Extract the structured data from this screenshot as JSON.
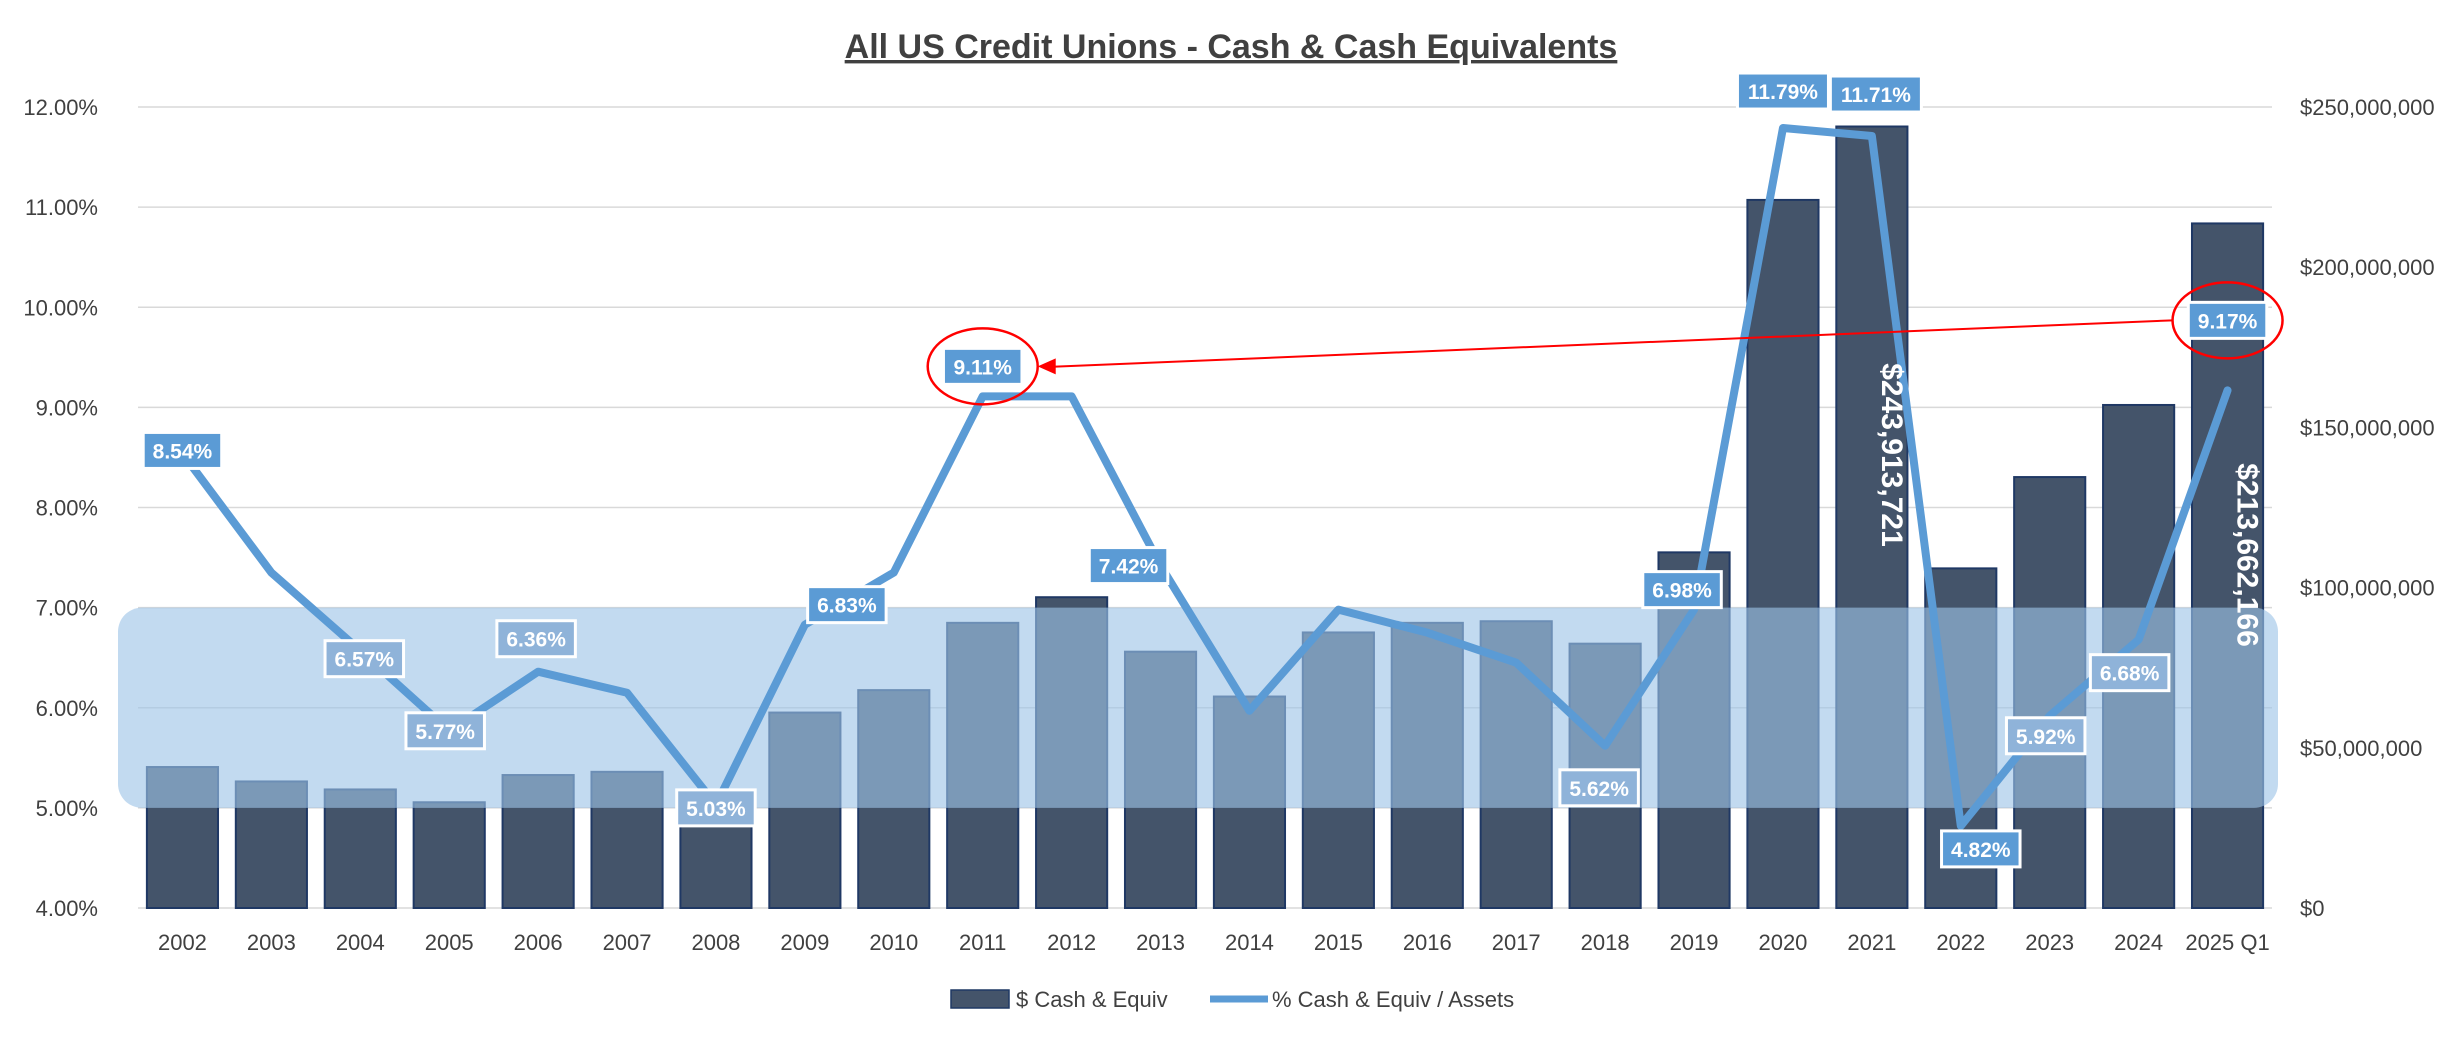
{
  "chart_data": {
    "type": "bar",
    "title": "All US Credit Unions - Cash & Cash Equivalents",
    "categories": [
      "2002",
      "2003",
      "2004",
      "2005",
      "2006",
      "2007",
      "2008",
      "2009",
      "2010",
      "2011",
      "2012",
      "2013",
      "2014",
      "2015",
      "2016",
      "2017",
      "2018",
      "2019",
      "2020",
      "2021",
      "2022",
      "2023",
      "2024",
      "2025 Q1"
    ],
    "y_left": {
      "min": 4.0,
      "max": 12.0,
      "step": 1.0,
      "tick_labels": [
        "4.00%",
        "5.00%",
        "6.00%",
        "7.00%",
        "8.00%",
        "9.00%",
        "10.00%",
        "11.00%",
        "12.00%"
      ]
    },
    "y_right": {
      "min": 0,
      "max": 250000000,
      "step": 50000000,
      "tick_labels": [
        "$0",
        "$50,000,000",
        "$100,000,000",
        "$150,000,000",
        "$200,000,000",
        "$250,000,000"
      ]
    },
    "series": [
      {
        "name": "$ Cash & Equiv",
        "type": "bar",
        "axis": "right",
        "color": "#44546A",
        "values": [
          44000000,
          39500000,
          37000000,
          33000000,
          41500000,
          42500000,
          33500000,
          61000000,
          68000000,
          89000000,
          97000000,
          80000000,
          66000000,
          86000000,
          89000000,
          89500000,
          82500000,
          111000000,
          221000000,
          243913721,
          106000000,
          134500000,
          157000000,
          213662166
        ],
        "value_labels": {
          "19": "$243,913,721",
          "23": "$213,662,166"
        }
      },
      {
        "name": "% Cash & Equiv / Assets",
        "type": "line",
        "axis": "left",
        "color": "#5B9BD5",
        "values": [
          8.54,
          7.35,
          6.57,
          5.77,
          6.36,
          6.15,
          5.03,
          6.83,
          7.35,
          9.11,
          9.11,
          7.42,
          5.97,
          6.98,
          6.75,
          6.45,
          5.62,
          6.98,
          11.79,
          11.71,
          4.82,
          5.92,
          6.68,
          9.17
        ],
        "point_labels": [
          {
            "index": 0,
            "text": "8.54%"
          },
          {
            "index": 2,
            "text": "6.57%"
          },
          {
            "index": 3,
            "text": "5.77%"
          },
          {
            "index": 4,
            "text": "6.36%"
          },
          {
            "index": 6,
            "text": "5.03%"
          },
          {
            "index": 7,
            "text": "6.83%"
          },
          {
            "index": 9,
            "text": "9.11%"
          },
          {
            "index": 11,
            "text": "7.42%"
          },
          {
            "index": 16,
            "text": "5.62%"
          },
          {
            "index": 17,
            "text": "6.98%"
          },
          {
            "index": 18,
            "text": "11.79%"
          },
          {
            "index": 19,
            "text": "11.71%"
          },
          {
            "index": 20,
            "text": "4.82%"
          },
          {
            "index": 21,
            "text": "5.92%"
          },
          {
            "index": 22,
            "text": "6.68%"
          },
          {
            "index": 23,
            "text": "9.17%"
          }
        ]
      }
    ],
    "highlight_band": {
      "from": 5.0,
      "to": 7.0,
      "color": "#9DC3E6"
    },
    "annotation": {
      "type": "arrow",
      "from_index": 23,
      "to_index": 9,
      "color": "#FF0000",
      "circled_labels": [
        9,
        23
      ]
    },
    "grid": true,
    "legend": "bottom-center"
  }
}
